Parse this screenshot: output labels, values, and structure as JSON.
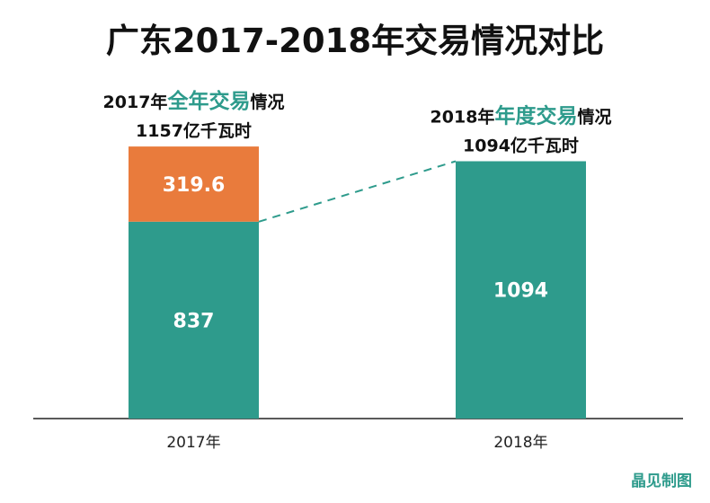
{
  "chart_data": {
    "type": "bar",
    "stacked": true,
    "title": "广东2017-2018年交易情况对比",
    "categories": [
      "2017年",
      "2018年"
    ],
    "series": [
      {
        "values": [
          837,
          1094
        ],
        "color": "#2e9b8c"
      },
      {
        "values": [
          319.6,
          0
        ],
        "color": "#e97b3c"
      }
    ],
    "data_labels": [
      [
        "837",
        "1094"
      ],
      [
        "319.6",
        ""
      ]
    ],
    "annotations": [
      {
        "prefix": "2017年",
        "highlight": "全年交易",
        "suffix": "情况",
        "total": "1157亿千瓦时"
      },
      {
        "prefix": "2018年",
        "highlight": "年度交易",
        "suffix": "情况",
        "total": "1094亿千瓦时"
      }
    ],
    "connector": "dashed",
    "ylim": [
      0,
      1157
    ],
    "grid": false,
    "credit": "晶见制图"
  }
}
